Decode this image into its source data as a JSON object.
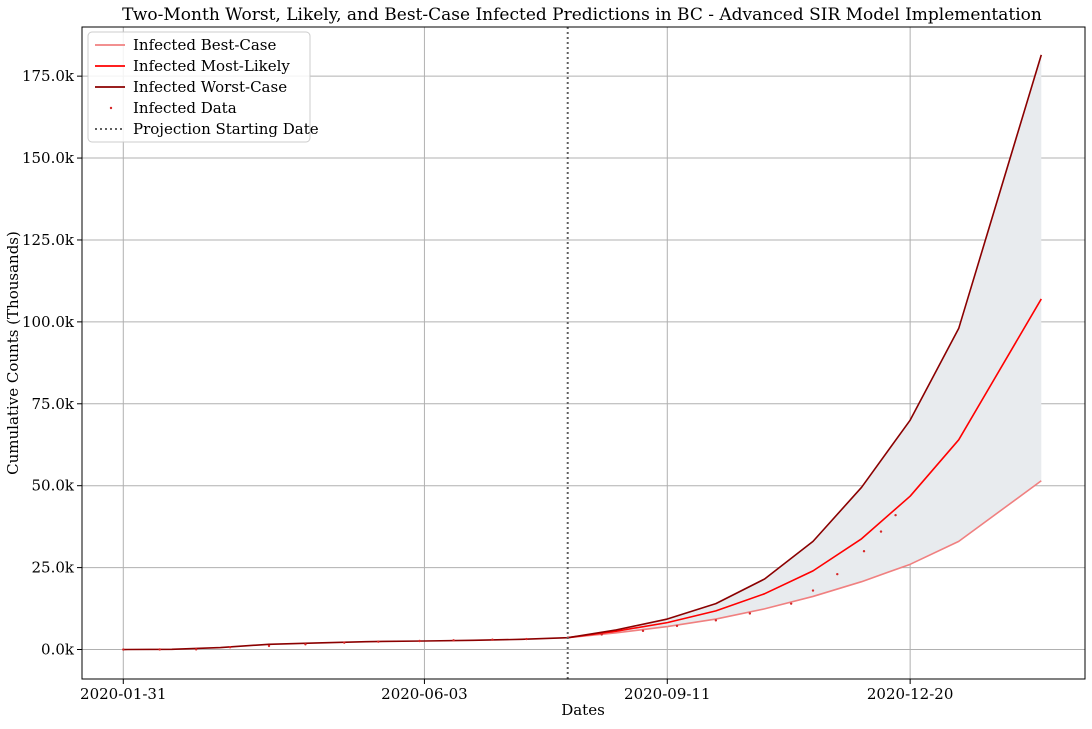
{
  "chart_data": {
    "type": "line",
    "title": "Two-Month Worst, Likely, and Best-Case Infected Predictions in BC - Advanced SIR Model Implementation",
    "xlabel": "Dates",
    "ylabel": "Cumulative Counts (Thousands)",
    "x_ticks": [
      "2020-01-31",
      "2020-06-03",
      "2020-09-11",
      "2020-12-20"
    ],
    "y_ticks": [
      {
        "value": 0,
        "label": "0.0k"
      },
      {
        "value": 25000,
        "label": "25.0k"
      },
      {
        "value": 50000,
        "label": "50.0k"
      },
      {
        "value": 75000,
        "label": "75.0k"
      },
      {
        "value": 100000,
        "label": "100.0k"
      },
      {
        "value": 125000,
        "label": "125.0k"
      },
      {
        "value": 150000,
        "label": "150.0k"
      },
      {
        "value": 175000,
        "label": "175.0k"
      }
    ],
    "xlim": [
      "2020-01-14",
      "2021-03-02"
    ],
    "ylim": [
      -9000,
      190000
    ],
    "grid": true,
    "legend_position": "top-left",
    "projection_start_date": "2020-08-01",
    "fill_between": {
      "lower": "Infected Best-Case",
      "upper": "Infected Worst-Case",
      "color": "#e8ebee"
    },
    "series": [
      {
        "name": "Infected Best-Case",
        "color": "#f08080",
        "style": "line",
        "x": [
          "2020-08-01",
          "2020-08-21",
          "2020-09-11",
          "2020-10-01",
          "2020-10-21",
          "2020-11-10",
          "2020-11-30",
          "2020-12-20",
          "2021-01-09",
          "2021-02-12"
        ],
        "y": [
          3600,
          5100,
          7000,
          9300,
          12400,
          16200,
          20700,
          26000,
          33000,
          51500
        ]
      },
      {
        "name": "Infected Most-Likely",
        "color": "#ff0000",
        "style": "line",
        "x": [
          "2020-08-01",
          "2020-08-21",
          "2020-09-11",
          "2020-10-01",
          "2020-10-21",
          "2020-11-10",
          "2020-11-30",
          "2020-12-20",
          "2021-01-09",
          "2021-02-12"
        ],
        "y": [
          3600,
          5600,
          8200,
          11800,
          17000,
          24000,
          33800,
          46800,
          64000,
          107000
        ]
      },
      {
        "name": "Infected Worst-Case",
        "color": "#8b0000",
        "style": "line",
        "x": [
          "2020-01-31",
          "2020-02-20",
          "2020-03-11",
          "2020-03-31",
          "2020-04-20",
          "2020-05-10",
          "2020-06-03",
          "2020-06-23",
          "2020-07-13",
          "2020-08-01",
          "2020-08-21",
          "2020-09-11",
          "2020-10-01",
          "2020-10-21",
          "2020-11-10",
          "2020-11-30",
          "2020-12-20",
          "2021-01-09",
          "2021-02-12"
        ],
        "y": [
          0,
          50,
          600,
          1600,
          2000,
          2400,
          2600,
          2800,
          3100,
          3600,
          6000,
          9300,
          14000,
          21500,
          33000,
          49500,
          70000,
          98000,
          181500
        ]
      },
      {
        "name": "Infected Data",
        "color": "#d62728",
        "style": "points",
        "x": [
          "2020-01-31",
          "2020-02-15",
          "2020-03-01",
          "2020-03-15",
          "2020-03-31",
          "2020-04-15",
          "2020-05-01",
          "2020-05-15",
          "2020-06-01",
          "2020-06-15",
          "2020-07-01",
          "2020-07-15",
          "2020-08-01",
          "2020-08-15",
          "2020-09-01",
          "2020-09-15",
          "2020-10-01",
          "2020-10-15",
          "2020-11-01",
          "2020-11-10",
          "2020-11-20",
          "2020-12-01",
          "2020-12-08",
          "2020-12-14"
        ],
        "y": [
          0,
          10,
          50,
          700,
          1100,
          1600,
          2100,
          2400,
          2600,
          2800,
          3000,
          3200,
          3600,
          4600,
          5700,
          7200,
          8900,
          11000,
          14000,
          18000,
          23000,
          30000,
          36000,
          41000
        ]
      }
    ]
  }
}
